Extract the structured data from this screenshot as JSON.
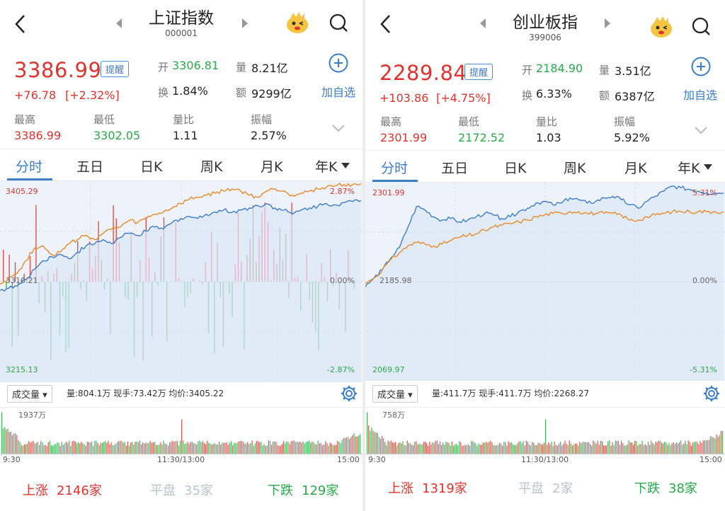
{
  "colors": {
    "up": "#e0332f",
    "down": "#2aa84a",
    "accent": "#3b7dc9",
    "flat": "#b8c4d0"
  },
  "panels": [
    {
      "header": {
        "title": "上证指数",
        "code": "000001"
      },
      "quote": {
        "price": "3386.99",
        "change": "+76.78",
        "change_pct": "[+2.32%]",
        "remind_label": "提醒",
        "open_label": "开",
        "open": "3306.81",
        "volume_label": "量",
        "volume": "8.21亿",
        "turnover_label": "换",
        "turnover": "1.84%",
        "amount_label": "额",
        "amount": "9299亿",
        "high_label": "最高",
        "high": "3386.99",
        "low_label": "最低",
        "low": "3302.05",
        "ratio_label": "量比",
        "ratio": "1.11",
        "amp_label": "振幅",
        "amp": "2.57%",
        "add_label": "加自选"
      },
      "tabs": [
        "分时",
        "五日",
        "日K",
        "周K",
        "月K",
        "年K"
      ],
      "axis": {
        "top_left": "3405.29",
        "mid_left": "3310.21",
        "bottom_left": "3215.13",
        "top_right": "2.87%",
        "mid_right": "0.00%",
        "bottom_right": "-2.87%"
      },
      "volume": {
        "selector": "成交量",
        "info": "量:804.1万  现手:73.42万  均价:3405.22",
        "max_label": "1937万",
        "t_start": "9:30",
        "t_mid": "11:30/13:00",
        "t_end": "15:00"
      },
      "breadth": {
        "up_label": "上涨",
        "up": "2146家",
        "flat_label": "平盘",
        "flat": "35家",
        "down_label": "下跌",
        "down": "129家"
      },
      "chart_data": {
        "type": "line",
        "y_range": [
          3215.13,
          3405.29
        ],
        "pct_range": [
          -2.87,
          2.87
        ],
        "series": [
          {
            "color": "#3b7dc9",
            "values": [
              3302,
              3304,
              3306,
              3312,
              3322,
              3330,
              3334,
              3336,
              3332,
              3338,
              3344,
              3346,
              3350,
              3346,
              3352,
              3356,
              3354,
              3358,
              3362,
              3360,
              3366,
              3370,
              3372,
              3370,
              3374,
              3376,
              3378,
              3376,
              3378,
              3380,
              3382,
              3384,
              3380,
              3378,
              3374,
              3378,
              3380,
              3382,
              3384,
              3383,
              3385,
              3386,
              3387
            ]
          },
          {
            "color": "#e88a2a",
            "values": [
              3308,
              3314,
              3318,
              3330,
              3342,
              3344,
              3336,
              3338,
              3346,
              3350,
              3354,
              3350,
              3356,
              3360,
              3362,
              3368,
              3366,
              3370,
              3374,
              3376,
              3380,
              3384,
              3388,
              3390,
              3392,
              3394,
              3396,
              3398,
              3396,
              3392,
              3390,
              3396,
              3398,
              3396,
              3392,
              3394,
              3396,
              3398,
              3400,
              3401,
              3402,
              3402,
              3403
            ]
          }
        ]
      }
    },
    {
      "header": {
        "title": "创业板指",
        "code": "399006"
      },
      "quote": {
        "price": "2289.84",
        "change": "+103.86",
        "change_pct": "[+4.75%]",
        "remind_label": "提醒",
        "open_label": "开",
        "open": "2184.90",
        "volume_label": "量",
        "volume": "3.51亿",
        "turnover_label": "换",
        "turnover": "6.33%",
        "amount_label": "额",
        "amount": "6387亿",
        "high_label": "最高",
        "high": "2301.99",
        "low_label": "最低",
        "low": "2172.52",
        "ratio_label": "量比",
        "ratio": "1.03",
        "amp_label": "振幅",
        "amp": "5.92%",
        "add_label": "加自选"
      },
      "tabs": [
        "分时",
        "五日",
        "日K",
        "周K",
        "月K",
        "年K"
      ],
      "axis": {
        "top_left": "2301.99",
        "mid_left": "2185.98",
        "bottom_left": "2069.97",
        "top_right": "5.31%",
        "mid_right": "0.00%",
        "bottom_right": "-5.31%"
      },
      "volume": {
        "selector": "成交量",
        "info": "量:411.7万  现手:411.7万  均价:2268.27",
        "max_label": "758万",
        "t_start": "9:30",
        "t_mid": "11:30/13:00",
        "t_end": "15:00"
      },
      "breadth": {
        "up_label": "上涨",
        "up": "1319家",
        "flat_label": "平盘",
        "flat": "2家",
        "down_label": "下跌",
        "down": "38家"
      },
      "chart_data": {
        "type": "line",
        "y_range": [
          2069.97,
          2301.99
        ],
        "pct_range": [
          -5.31,
          5.31
        ],
        "series": [
          {
            "color": "#3b7dc9",
            "values": [
              2180,
              2190,
              2200,
              2214,
              2226,
              2250,
              2274,
              2270,
              2262,
              2258,
              2260,
              2256,
              2258,
              2262,
              2266,
              2264,
              2260,
              2262,
              2268,
              2272,
              2278,
              2280,
              2276,
              2278,
              2284,
              2282,
              2278,
              2280,
              2284,
              2286,
              2282,
              2276,
              2272,
              2280,
              2286,
              2292,
              2298,
              2296,
              2294,
              2292,
              2290,
              2290,
              2290
            ]
          },
          {
            "color": "#e88a2a",
            "values": [
              2184,
              2190,
              2200,
              2212,
              2220,
              2228,
              2232,
              2230,
              2228,
              2230,
              2234,
              2238,
              2240,
              2242,
              2246,
              2250,
              2252,
              2254,
              2256,
              2258,
              2262,
              2264,
              2266,
              2266,
              2268,
              2268,
              2266,
              2266,
              2266,
              2266,
              2264,
              2258,
              2258,
              2262,
              2264,
              2266,
              2268,
              2268,
              2268,
              2268,
              2268,
              2268,
              2268
            ]
          }
        ]
      }
    }
  ]
}
